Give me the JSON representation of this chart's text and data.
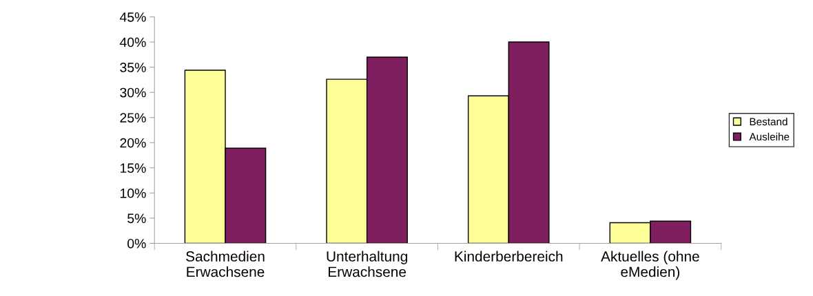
{
  "chart_data": {
    "type": "bar",
    "categories": [
      "Sachmedien\nErwachsene",
      "Unterhaltung\nErwachsene",
      "Kinderberbereich",
      "Aktuelles (ohne\neMedien)"
    ],
    "series": [
      {
        "name": "Bestand",
        "color": "#ffff99",
        "values": [
          34.4,
          32.6,
          29.3,
          4.1
        ]
      },
      {
        "name": "Ausleihe",
        "color": "#7f1f5f",
        "values": [
          18.9,
          37.0,
          40.0,
          4.4
        ]
      }
    ],
    "ylim": [
      0,
      45
    ],
    "yticks": [
      {
        "value": 0,
        "label": "0%"
      },
      {
        "value": 5,
        "label": "5%"
      },
      {
        "value": 10,
        "label": "10%"
      },
      {
        "value": 15,
        "label": "15%"
      },
      {
        "value": 20,
        "label": "20%"
      },
      {
        "value": 25,
        "label": "25%"
      },
      {
        "value": 30,
        "label": "30%"
      },
      {
        "value": 35,
        "label": "35%"
      },
      {
        "value": 40,
        "label": "40%"
      },
      {
        "value": 45,
        "label": "45%"
      }
    ],
    "grid": false,
    "legend": "right"
  }
}
